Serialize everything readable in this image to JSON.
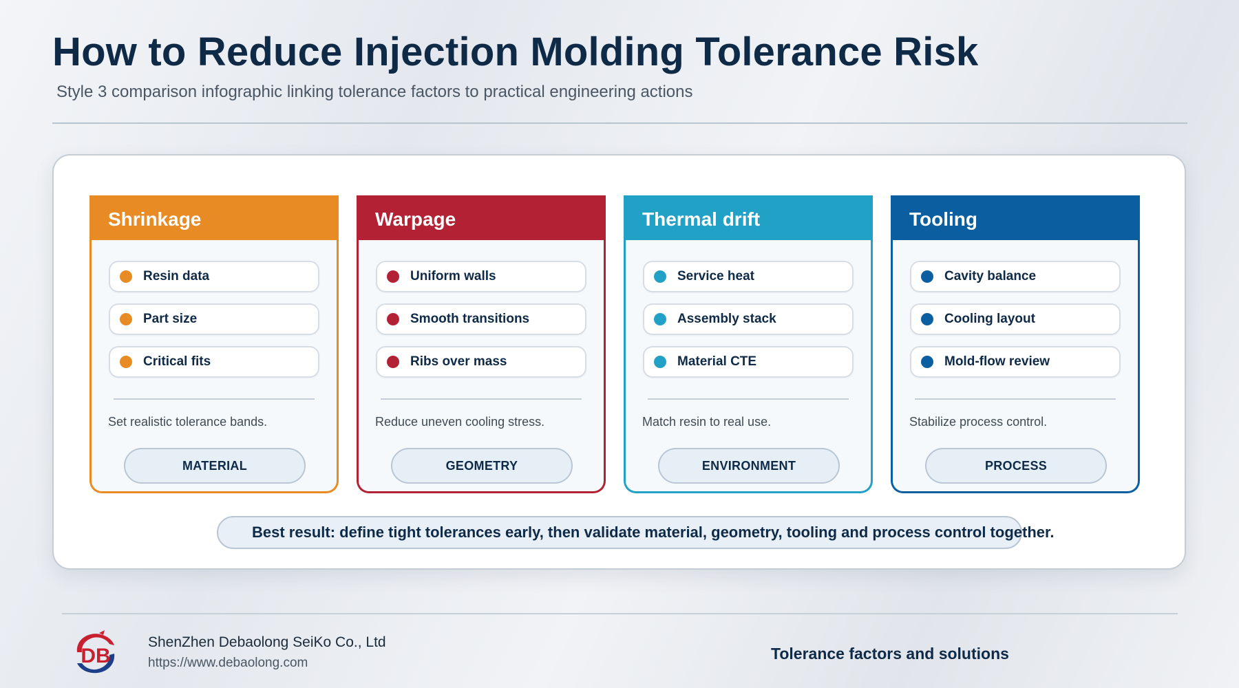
{
  "header": {
    "title": "How to Reduce Injection Molding Tolerance Risk",
    "subtitle": "Style 3 comparison infographic linking tolerance factors to practical engineering actions"
  },
  "cards": [
    {
      "title": "Shrinkage",
      "color": "#e88b24",
      "items": [
        "Resin data",
        "Part size",
        "Critical fits"
      ],
      "description": "Set realistic tolerance bands.",
      "tag": "MATERIAL"
    },
    {
      "title": "Warpage",
      "color": "#b22234",
      "items": [
        "Uniform walls",
        "Smooth transitions",
        "Ribs over mass"
      ],
      "description": "Reduce uneven cooling stress.",
      "tag": "GEOMETRY"
    },
    {
      "title": "Thermal drift",
      "color": "#21a1c6",
      "items": [
        "Service heat",
        "Assembly stack",
        "Material CTE"
      ],
      "description": "Match resin to real use.",
      "tag": "ENVIRONMENT"
    },
    {
      "title": "Tooling",
      "color": "#0b5fa0",
      "items": [
        "Cavity balance",
        "Cooling layout",
        "Mold-flow review"
      ],
      "description": "Stabilize process control.",
      "tag": "PROCESS"
    }
  ],
  "summary": "Best result: define tight tolerances early, then validate material, geometry, tooling and process control together.",
  "footer": {
    "logo_text": "DB",
    "company": "ShenZhen Debaolong SeiKo Co., Ltd",
    "url": "https://www.debaolong.com",
    "tagline": "Tolerance factors and solutions"
  }
}
